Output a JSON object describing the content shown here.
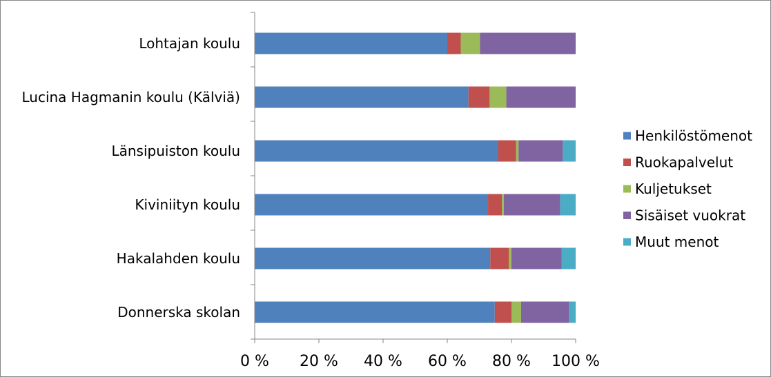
{
  "chart_data": {
    "type": "bar",
    "orientation": "horizontal",
    "stacked": "percent",
    "categories": [
      "Lohtajan koulu",
      "Lucina Hagmanin koulu (Kälviä)",
      "Länsipuiston koulu",
      "Kiviniityn koulu",
      "Hakalahden koulu",
      "Donnerska skolan"
    ],
    "series": [
      {
        "name": "Henkilöstömenot",
        "color": "#4f81bd",
        "values": [
          60,
          66.6,
          75.8,
          72.7,
          73.4,
          74.8
        ]
      },
      {
        "name": "Ruokapalvelut",
        "color": "#c0504d",
        "values": [
          4.2,
          6.6,
          5.6,
          4.3,
          5.8,
          5.2
        ]
      },
      {
        "name": "Kuljetukset",
        "color": "#9bbb59",
        "values": [
          6,
          5.2,
          0.8,
          0.6,
          0.8,
          3
        ]
      },
      {
        "name": "Sisäiset vuokrat",
        "color": "#8064a2",
        "values": [
          29.8,
          21.6,
          13.8,
          17.6,
          15.6,
          15
        ]
      },
      {
        "name": "Muut menot",
        "color": "#4bacc6",
        "values": [
          0,
          0,
          4,
          4.8,
          4.4,
          2
        ]
      }
    ],
    "xlim": [
      0,
      100
    ],
    "x_ticks": [
      "0 %",
      "20 %",
      "40 %",
      "60 %",
      "80 %",
      "100 %"
    ],
    "grid": false,
    "legend_position": "right"
  }
}
